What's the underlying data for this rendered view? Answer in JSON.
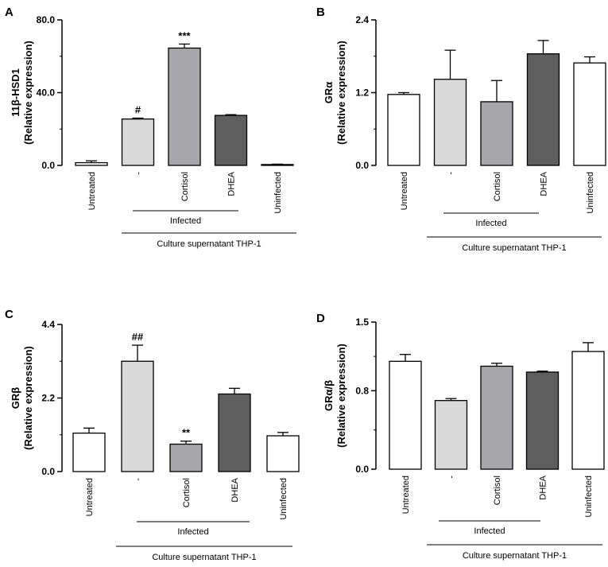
{
  "chart_data": [
    {
      "panel": "A",
      "type": "bar",
      "ylabel_line1": "11β-HSD1",
      "ylabel_line2": "(Relative expression)",
      "ylim": [
        0,
        80
      ],
      "yticks": [
        "0.0",
        "40.0",
        "80.0"
      ],
      "categories": [
        "Untreated",
        "-",
        "Cortisol",
        "DHEA",
        "Uninfected"
      ],
      "values": [
        1.5,
        25.5,
        64.5,
        27.5,
        0.5
      ],
      "errors": [
        1.0,
        0.5,
        2.2,
        0.4,
        0.2
      ],
      "significance": [
        "",
        "#",
        "***",
        "",
        ""
      ],
      "bar_colors": [
        "#ffffff",
        "#d9d9d9",
        "#a6a6ab",
        "#5e5e5e",
        "#ffffff"
      ],
      "group_infected": "Infected",
      "group_culture": "Culture supernatant THP-1"
    },
    {
      "panel": "B",
      "type": "bar",
      "ylabel_line1": "GRα",
      "ylabel_line2": "(Relative expression)",
      "ylim": [
        0,
        2.4
      ],
      "yticks": [
        "0.0",
        "1.2",
        "2.4"
      ],
      "categories": [
        "Untreated",
        "-",
        "Cortisol",
        "DHEA",
        "Uninfected"
      ],
      "values": [
        1.17,
        1.42,
        1.05,
        1.84,
        1.69
      ],
      "errors": [
        0.03,
        0.48,
        0.35,
        0.22,
        0.1
      ],
      "significance": [
        "",
        "",
        "",
        "",
        ""
      ],
      "bar_colors": [
        "#ffffff",
        "#d9d9d9",
        "#a6a6ab",
        "#5e5e5e",
        "#ffffff"
      ],
      "group_infected": "Infected",
      "group_culture": "Culture supernatant THP-1"
    },
    {
      "panel": "C",
      "type": "bar",
      "ylabel_line1": "GRβ",
      "ylabel_line2": "(Relative expression)",
      "ylim": [
        0,
        4.4
      ],
      "yticks": [
        "0.0",
        "2.2",
        "4.4"
      ],
      "categories": [
        "Untreated",
        "-",
        "Cortisol",
        "DHEA",
        "Uninfected"
      ],
      "values": [
        1.15,
        3.3,
        0.82,
        2.32,
        1.07
      ],
      "errors": [
        0.15,
        0.48,
        0.09,
        0.17,
        0.1
      ],
      "significance": [
        "",
        "##",
        "**",
        "",
        ""
      ],
      "bar_colors": [
        "#ffffff",
        "#d9d9d9",
        "#a6a6ab",
        "#5e5e5e",
        "#ffffff"
      ],
      "group_infected": "Infected",
      "group_culture": "Culture supernatant THP-1"
    },
    {
      "panel": "D",
      "type": "bar",
      "ylabel_line1": "GRα/β",
      "ylabel_line2": "(Relative expression)",
      "ylim": [
        0,
        1.5
      ],
      "yticks": [
        "0.0",
        "0.8",
        "1.5"
      ],
      "categories": [
        "Untreated",
        "-",
        "Cortisol",
        "DHEA",
        "Uninfected"
      ],
      "values": [
        1.1,
        0.7,
        1.05,
        0.99,
        1.2
      ],
      "errors": [
        0.07,
        0.02,
        0.03,
        0.01,
        0.09
      ],
      "significance": [
        "",
        "",
        "",
        "",
        ""
      ],
      "bar_colors": [
        "#ffffff",
        "#d9d9d9",
        "#a6a6ab",
        "#5e5e5e",
        "#ffffff"
      ],
      "group_infected": "Infected",
      "group_culture": "Culture supernatant THP-1"
    }
  ]
}
